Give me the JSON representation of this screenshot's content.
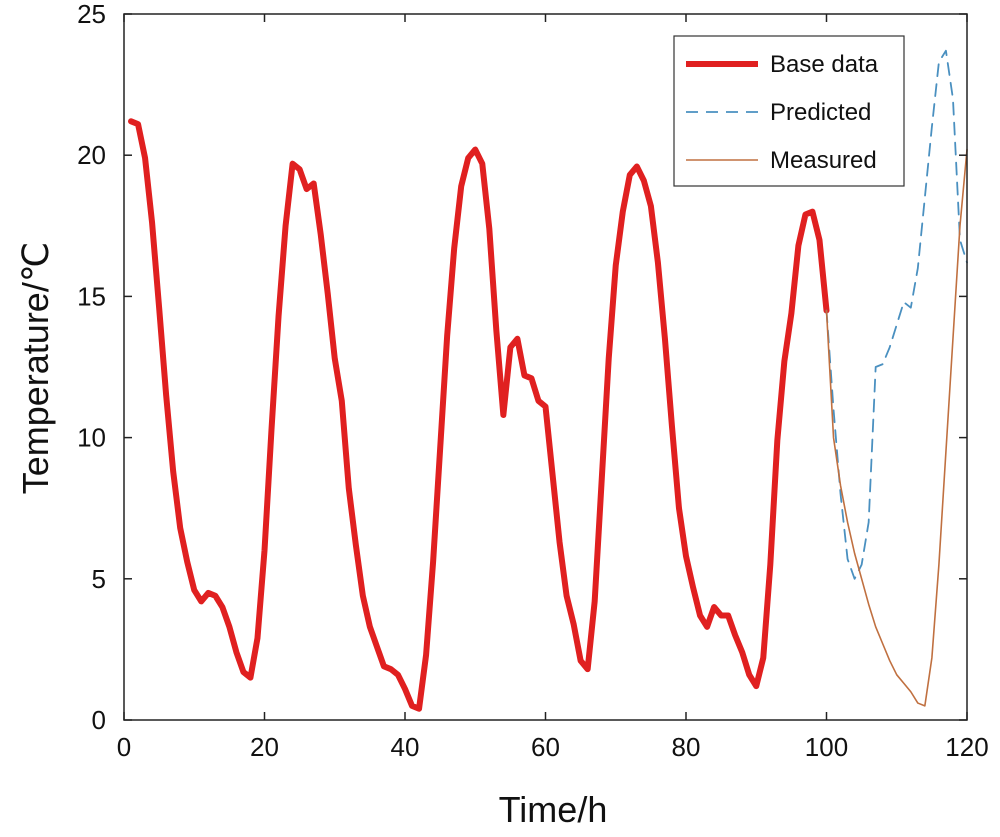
{
  "chart_data": {
    "type": "line",
    "title": "",
    "xlabel": "Time/h",
    "ylabel": "Temperature/℃",
    "xlim": [
      0,
      120
    ],
    "ylim": [
      0,
      25
    ],
    "xticks": [
      0,
      20,
      40,
      60,
      80,
      100,
      120
    ],
    "yticks": [
      0,
      5,
      10,
      15,
      20,
      25
    ],
    "grid": false,
    "legend_position": "top-right",
    "series": [
      {
        "name": "Base data",
        "color": "#e02020",
        "style": "solid-thick",
        "points": [
          [
            1,
            21.2
          ],
          [
            2,
            21.1
          ],
          [
            3,
            19.9
          ],
          [
            4,
            17.6
          ],
          [
            5,
            14.6
          ],
          [
            6,
            11.5
          ],
          [
            7,
            8.8
          ],
          [
            8,
            6.8
          ],
          [
            9,
            5.6
          ],
          [
            10,
            4.6
          ],
          [
            11,
            4.2
          ],
          [
            12,
            4.5
          ],
          [
            13,
            4.4
          ],
          [
            14,
            4.0
          ],
          [
            15,
            3.3
          ],
          [
            16,
            2.4
          ],
          [
            17,
            1.7
          ],
          [
            18,
            1.5
          ],
          [
            19,
            2.9
          ],
          [
            20,
            6.0
          ],
          [
            21,
            10.3
          ],
          [
            22,
            14.3
          ],
          [
            23,
            17.5
          ],
          [
            24,
            19.7
          ],
          [
            25,
            19.5
          ],
          [
            26,
            18.8
          ],
          [
            27,
            19.0
          ],
          [
            28,
            17.2
          ],
          [
            29,
            15.1
          ],
          [
            30,
            12.8
          ],
          [
            31,
            11.3
          ],
          [
            32,
            8.2
          ],
          [
            33,
            6.2
          ],
          [
            34,
            4.4
          ],
          [
            35,
            3.3
          ],
          [
            36,
            2.6
          ],
          [
            37,
            1.9
          ],
          [
            38,
            1.8
          ],
          [
            39,
            1.6
          ],
          [
            40,
            1.1
          ],
          [
            41,
            0.5
          ],
          [
            42,
            0.4
          ],
          [
            43,
            2.3
          ],
          [
            44,
            5.6
          ],
          [
            45,
            9.6
          ],
          [
            46,
            13.6
          ],
          [
            47,
            16.7
          ],
          [
            48,
            18.9
          ],
          [
            49,
            19.9
          ],
          [
            50,
            20.2
          ],
          [
            51,
            19.7
          ],
          [
            52,
            17.4
          ],
          [
            53,
            13.8
          ],
          [
            54,
            10.8
          ],
          [
            55,
            13.2
          ],
          [
            56,
            13.5
          ],
          [
            57,
            12.2
          ],
          [
            58,
            12.1
          ],
          [
            59,
            11.3
          ],
          [
            60,
            11.1
          ],
          [
            61,
            8.7
          ],
          [
            62,
            6.3
          ],
          [
            63,
            4.4
          ],
          [
            64,
            3.4
          ],
          [
            65,
            2.1
          ],
          [
            66,
            1.8
          ],
          [
            67,
            4.2
          ],
          [
            68,
            8.5
          ],
          [
            69,
            12.8
          ],
          [
            70,
            16.1
          ],
          [
            71,
            18.0
          ],
          [
            72,
            19.3
          ],
          [
            73,
            19.6
          ],
          [
            74,
            19.1
          ],
          [
            75,
            18.2
          ],
          [
            76,
            16.2
          ],
          [
            77,
            13.5
          ],
          [
            78,
            10.4
          ],
          [
            79,
            7.5
          ],
          [
            80,
            5.8
          ],
          [
            81,
            4.7
          ],
          [
            82,
            3.7
          ],
          [
            83,
            3.3
          ],
          [
            84,
            4.0
          ],
          [
            85,
            3.7
          ],
          [
            86,
            3.7
          ],
          [
            87,
            3.0
          ],
          [
            88,
            2.4
          ],
          [
            89,
            1.6
          ],
          [
            90,
            1.2
          ],
          [
            91,
            2.2
          ],
          [
            92,
            5.5
          ],
          [
            93,
            9.9
          ],
          [
            94,
            12.7
          ],
          [
            95,
            14.4
          ],
          [
            96,
            16.8
          ],
          [
            97,
            17.9
          ],
          [
            98,
            18.0
          ],
          [
            99,
            17.0
          ],
          [
            100,
            14.5
          ]
        ]
      },
      {
        "name": "Predicted",
        "color": "#4a90c0",
        "style": "dashed",
        "points": [
          [
            100,
            14.5
          ],
          [
            101,
            11.0
          ],
          [
            102,
            8.0
          ],
          [
            103,
            5.7
          ],
          [
            104,
            5.0
          ],
          [
            105,
            5.5
          ],
          [
            106,
            7.0
          ],
          [
            107,
            12.5
          ],
          [
            108,
            12.6
          ],
          [
            109,
            13.2
          ],
          [
            110,
            14.0
          ],
          [
            111,
            14.8
          ],
          [
            112,
            14.6
          ],
          [
            113,
            16.0
          ],
          [
            114,
            18.5
          ],
          [
            115,
            21.0
          ],
          [
            116,
            23.3
          ],
          [
            117,
            23.7
          ],
          [
            118,
            22.0
          ],
          [
            119,
            17.0
          ],
          [
            120,
            16.2
          ]
        ]
      },
      {
        "name": "Measured",
        "color": "#c07040",
        "style": "solid-thin",
        "points": [
          [
            100,
            14.5
          ],
          [
            101,
            10.0
          ],
          [
            102,
            8.3
          ],
          [
            103,
            7.0
          ],
          [
            104,
            5.9
          ],
          [
            105,
            5.0
          ],
          [
            106,
            4.1
          ],
          [
            107,
            3.3
          ],
          [
            108,
            2.7
          ],
          [
            109,
            2.1
          ],
          [
            110,
            1.6
          ],
          [
            111,
            1.3
          ],
          [
            112,
            1.0
          ],
          [
            113,
            0.6
          ],
          [
            114,
            0.5
          ],
          [
            115,
            2.2
          ],
          [
            116,
            5.5
          ],
          [
            117,
            9.5
          ],
          [
            118,
            13.5
          ],
          [
            119,
            17.5
          ],
          [
            120,
            20.2
          ]
        ]
      }
    ]
  }
}
